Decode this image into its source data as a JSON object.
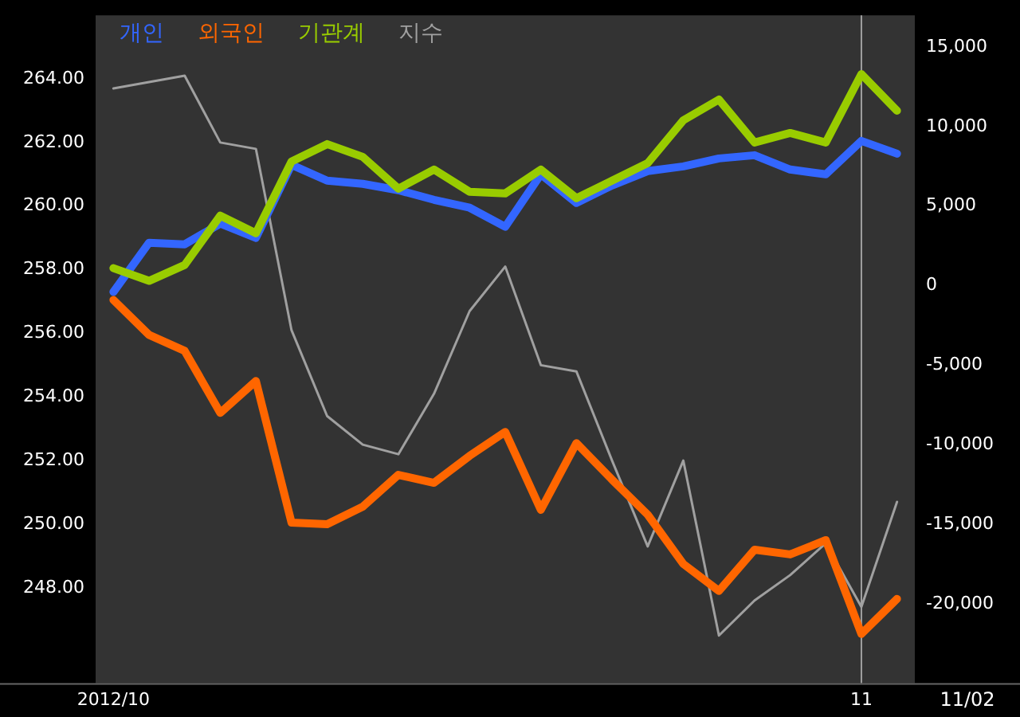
{
  "chart_data": {
    "type": "line",
    "categories": [
      "2012/10",
      null,
      null,
      null,
      null,
      null,
      null,
      null,
      null,
      null,
      null,
      null,
      null,
      null,
      null,
      null,
      null,
      null,
      null,
      null,
      null,
      "11",
      null
    ],
    "series": [
      {
        "name": "개인",
        "color": "#3366ff",
        "axis": "y2",
        "values": [
          -400,
          2700,
          2600,
          3900,
          3000,
          7600,
          6600,
          6400,
          6000,
          5400,
          4900,
          3700,
          7000,
          5200,
          6300,
          7200,
          7500,
          8000,
          8200,
          7300,
          7000,
          9100,
          8300
        ]
      },
      {
        "name": "외국인",
        "color": "#ff6600",
        "axis": "y2",
        "values": [
          -900,
          -3100,
          -4100,
          -8000,
          -6000,
          -14900,
          -15000,
          -13900,
          -11900,
          -12400,
          -10700,
          -9200,
          -14100,
          -9900,
          -12200,
          -14400,
          -17500,
          -19200,
          -16600,
          -16900,
          -16000,
          -21900,
          -19700
        ]
      },
      {
        "name": "기관계",
        "color": "#99cc00",
        "axis": "y2",
        "values": [
          1100,
          300,
          1300,
          4400,
          3300,
          7800,
          8900,
          8100,
          6100,
          7300,
          5900,
          5800,
          7300,
          5500,
          6600,
          7700,
          10400,
          11700,
          9000,
          9600,
          9000,
          13300,
          11000
        ]
      },
      {
        "name": "지수",
        "color": "#a0a0a0",
        "axis": "y",
        "values": [
          263.7,
          263.9,
          264.1,
          262.0,
          261.8,
          256.1,
          253.4,
          252.5,
          252.2,
          254.1,
          256.7,
          258.1,
          255.0,
          254.8,
          252.0,
          249.3,
          252.0,
          246.5,
          247.6,
          248.4,
          249.4,
          247.4,
          250.7
        ]
      }
    ],
    "ylim": [
      245,
      266
    ],
    "yticks": [
      {
        "value": 248,
        "label": "248.00"
      },
      {
        "value": 250,
        "label": "250.00"
      },
      {
        "value": 252,
        "label": "252.00"
      },
      {
        "value": 254,
        "label": "254.00"
      },
      {
        "value": 256,
        "label": "256.00"
      },
      {
        "value": 258,
        "label": "258.00"
      },
      {
        "value": 260,
        "label": "260.00"
      },
      {
        "value": 262,
        "label": "262.00"
      },
      {
        "value": 264,
        "label": "264.00"
      }
    ],
    "y2lim": [
      -25000,
      17000
    ],
    "y2ticks": [
      {
        "value": -20000,
        "label": "-20,000"
      },
      {
        "value": -15000,
        "label": "-15,000"
      },
      {
        "value": -10000,
        "label": "-10,000"
      },
      {
        "value": -5000,
        "label": "-5,000"
      },
      0,
      {
        "value": 5000,
        "label": "5,000"
      },
      {
        "value": 10000,
        "label": "10,000"
      },
      {
        "value": 15000,
        "label": "15,000"
      }
    ],
    "ref_lines": [
      {
        "axis": "x",
        "value": "11",
        "color": "#a0a0a0"
      }
    ],
    "annotations": [
      "11/02"
    ],
    "legend": "top left",
    "grid": false,
    "marker": "none",
    "line_style": "solid"
  }
}
